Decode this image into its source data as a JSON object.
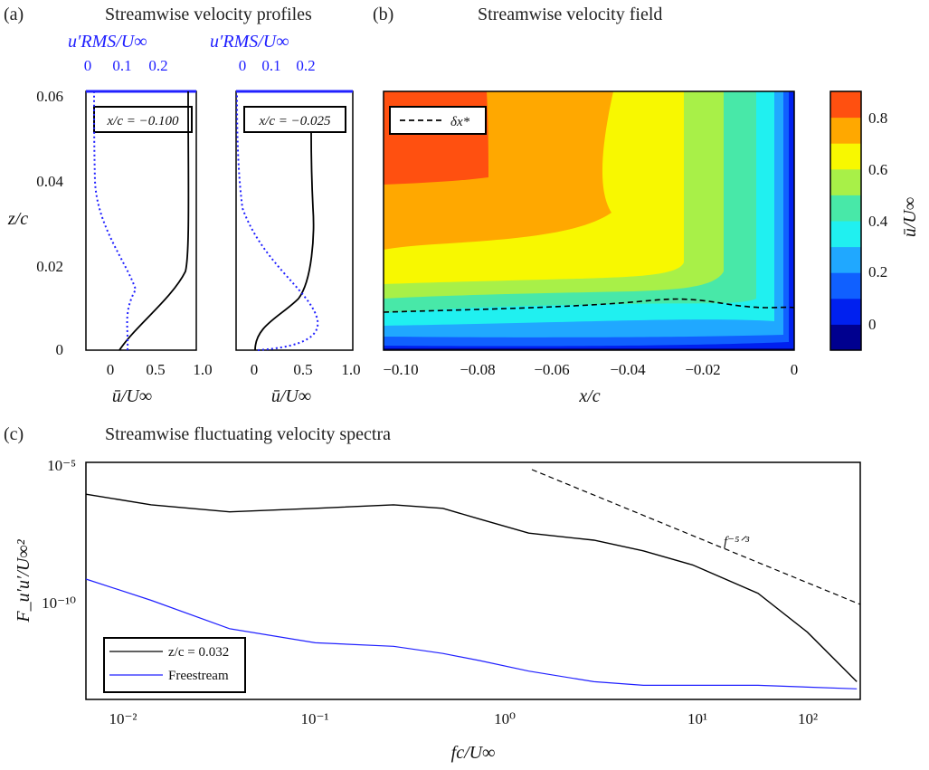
{
  "panels": {
    "a": {
      "tag": "(a)",
      "title": "Streamwise velocity profiles",
      "ylabel": "z/c",
      "xlabel": "ū/U∞",
      "top_label": "u′RMS/U∞",
      "top_ticks": [
        "0",
        "0.1",
        "0.2"
      ],
      "y_ticks": [
        "0",
        "0.02",
        "0.04",
        "0.06"
      ],
      "x_ticks_left": [
        "0",
        "0.5",
        "1.0"
      ],
      "x_ticks_right": [
        "0",
        "0.5",
        "1.0"
      ],
      "labels": [
        "x/c = −0.100",
        "x/c = −0.025"
      ]
    },
    "b": {
      "tag": "(b)",
      "title": "Streamwise velocity field",
      "xlabel": "x/c",
      "x_ticks": [
        "−0.10",
        "−0.08",
        "−0.06",
        "−0.04",
        "−0.02",
        "0"
      ],
      "legend": "δx*",
      "colorbar_label": "ū/U∞",
      "colorbar_ticks": [
        "0",
        "0.2",
        "0.4",
        "0.6",
        "0.8"
      ],
      "colorbar_colors": [
        "#00008f",
        "#0020ef",
        "#1060ff",
        "#20a8ff",
        "#20f0f0",
        "#48e8a8",
        "#a8f048",
        "#f8f800",
        "#ffa800",
        "#ff5010"
      ]
    },
    "c": {
      "tag": "(c)",
      "title": "Streamwise fluctuating velocity spectra",
      "xlabel": "fc/U∞",
      "ylabel": "F_u′u′/U∞²",
      "x_ticks": [
        "10⁻²",
        "10⁻¹",
        "10⁰",
        "10¹",
        "10²"
      ],
      "y_ticks": [
        "10⁻⁵",
        "10⁻¹⁰"
      ],
      "slope_label": "f⁻⁵ᐟ³",
      "legend": [
        "z/c = 0.032",
        "Freestream"
      ]
    }
  },
  "chart_data": [
    {
      "type": "line",
      "title": "Streamwise velocity profiles",
      "xlabel": "ū/U∞",
      "ylabel": "z/c",
      "xlim": [
        -0.25,
        1.0
      ],
      "ylim": [
        0,
        0.06
      ],
      "series": [
        {
          "name": "x/c = −0.100",
          "x": [
            0.15,
            0.3,
            0.5,
            0.65,
            0.75,
            0.8,
            0.84,
            0.85,
            0.85,
            0.85
          ],
          "y": [
            0,
            0.003,
            0.006,
            0.01,
            0.015,
            0.02,
            0.028,
            0.035,
            0.045,
            0.06
          ]
        },
        {
          "name": "x/c = −0.025",
          "x": [
            0,
            0.1,
            0.3,
            0.45,
            0.55,
            0.6,
            0.63,
            0.65,
            0.65,
            0.65
          ],
          "y": [
            0,
            0.003,
            0.006,
            0.01,
            0.015,
            0.02,
            0.028,
            0.035,
            0.045,
            0.06
          ]
        }
      ]
    },
    {
      "type": "heatmap",
      "title": "Streamwise velocity field",
      "xlabel": "x/c",
      "xlim": [
        -0.11,
        0
      ],
      "ylim": [
        0,
        0.06
      ],
      "zlim": [
        -0.1,
        0.9
      ]
    },
    {
      "type": "line",
      "title": "Streamwise fluctuating velocity spectra",
      "xlabel": "fc/U∞",
      "ylabel": "F_u′u′/U∞²",
      "log_x": true,
      "log_y": true,
      "xlim": [
        0.004,
        210
      ],
      "series": [
        {
          "name": "z/c = 0.032",
          "x": [
            0.004,
            0.01,
            0.03,
            0.1,
            0.3,
            0.6,
            1,
            2,
            5,
            10,
            20,
            50,
            100,
            200
          ],
          "y": [
            -5.8,
            -6.1,
            -6.3,
            -6.2,
            -6.1,
            -6.2,
            -6.5,
            -6.9,
            -7.1,
            -7.4,
            -7.8,
            -8.6,
            -9.7,
            -11.1
          ]
        },
        {
          "name": "Freestream",
          "x": [
            0.004,
            0.01,
            0.03,
            0.1,
            0.3,
            0.6,
            1,
            2,
            5,
            10,
            50,
            200
          ],
          "y": [
            -8.2,
            -8.8,
            -9.6,
            -10.0,
            -10.1,
            -10.3,
            -10.5,
            -10.8,
            -11.1,
            -11.2,
            -11.2,
            -11.3
          ]
        }
      ]
    }
  ]
}
